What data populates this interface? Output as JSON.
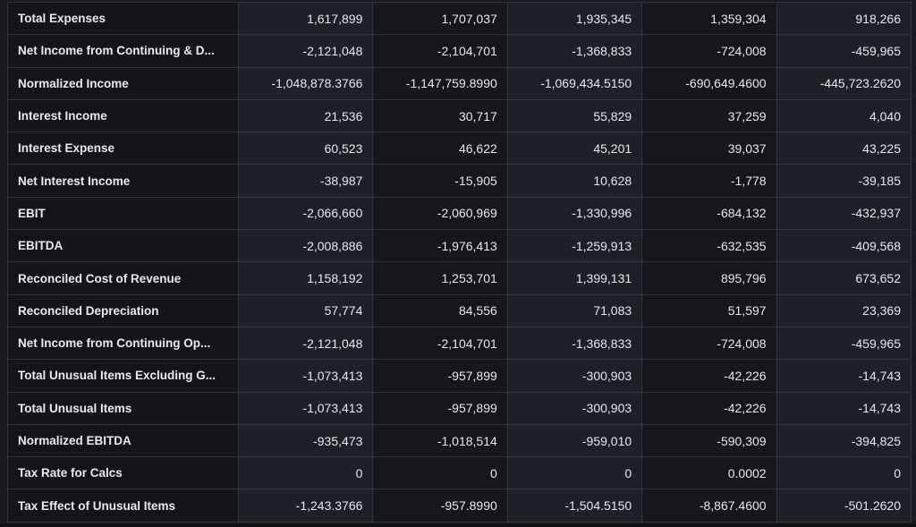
{
  "rows": [
    {
      "label": "Total Expenses",
      "values": [
        "1,617,899",
        "1,707,037",
        "1,935,345",
        "1,359,304",
        "918,266"
      ]
    },
    {
      "label": "Net Income from Continuing & D...",
      "values": [
        "-2,121,048",
        "-2,104,701",
        "-1,368,833",
        "-724,008",
        "-459,965"
      ]
    },
    {
      "label": "Normalized Income",
      "values": [
        "-1,048,878.3766",
        "-1,147,759.8990",
        "-1,069,434.5150",
        "-690,649.4600",
        "-445,723.2620"
      ]
    },
    {
      "label": "Interest Income",
      "values": [
        "21,536",
        "30,717",
        "55,829",
        "37,259",
        "4,040"
      ]
    },
    {
      "label": "Interest Expense",
      "values": [
        "60,523",
        "46,622",
        "45,201",
        "39,037",
        "43,225"
      ]
    },
    {
      "label": "Net Interest Income",
      "values": [
        "-38,987",
        "-15,905",
        "10,628",
        "-1,778",
        "-39,185"
      ]
    },
    {
      "label": "EBIT",
      "values": [
        "-2,066,660",
        "-2,060,969",
        "-1,330,996",
        "-684,132",
        "-432,937"
      ]
    },
    {
      "label": "EBITDA",
      "values": [
        "-2,008,886",
        "-1,976,413",
        "-1,259,913",
        "-632,535",
        "-409,568"
      ]
    },
    {
      "label": "Reconciled Cost of Revenue",
      "values": [
        "1,158,192",
        "1,253,701",
        "1,399,131",
        "895,796",
        "673,652"
      ]
    },
    {
      "label": "Reconciled Depreciation",
      "values": [
        "57,774",
        "84,556",
        "71,083",
        "51,597",
        "23,369"
      ]
    },
    {
      "label": "Net Income from Continuing Op...",
      "values": [
        "-2,121,048",
        "-2,104,701",
        "-1,368,833",
        "-724,008",
        "-459,965"
      ]
    },
    {
      "label": "Total Unusual Items Excluding G...",
      "values": [
        "-1,073,413",
        "-957,899",
        "-300,903",
        "-42,226",
        "-14,743"
      ]
    },
    {
      "label": "Total Unusual Items",
      "values": [
        "-1,073,413",
        "-957,899",
        "-300,903",
        "-42,226",
        "-14,743"
      ]
    },
    {
      "label": "Normalized EBITDA",
      "values": [
        "-935,473",
        "-1,018,514",
        "-959,010",
        "-590,309",
        "-394,825"
      ]
    },
    {
      "label": "Tax Rate for Calcs",
      "values": [
        "0",
        "0",
        "0",
        "0.0002",
        "0"
      ]
    },
    {
      "label": "Tax Effect of Unusual Items",
      "values": [
        "-1,243.3766",
        "-957.8990",
        "-1,504.5150",
        "-8,867.4600",
        "-501.2620"
      ]
    }
  ]
}
